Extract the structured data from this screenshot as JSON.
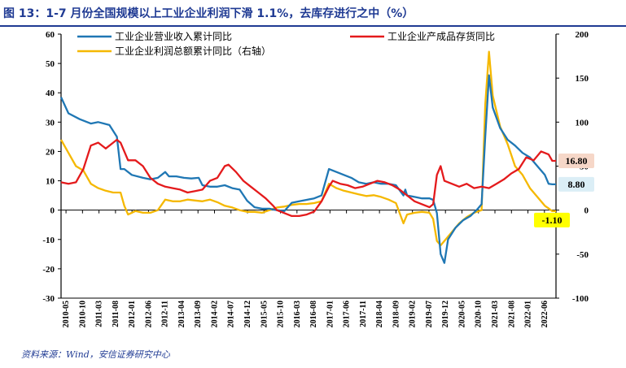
{
  "header": {
    "title": "图 13：1-7 月份全国规模以上工业企业利润下滑 1.1%，去库存进行之中（%）"
  },
  "footer": {
    "source": "资料来源：Wind，安信证券研究中心"
  },
  "colors": {
    "revenue": "#1f77b4",
    "inventory": "#e41a1c",
    "profit": "#f5b800",
    "title": "#1f3a93"
  },
  "chart_data": {
    "type": "line",
    "title": "1-7 月份全国规模以上工业企业利润下滑 1.1%，去库存进行之中（%）",
    "x_tick_labels": [
      "2010-05",
      "2010-10",
      "2011-03",
      "2011-08",
      "2012-01",
      "2012-06",
      "2012-11",
      "2013-04",
      "2013-09",
      "2014-02",
      "2014-07",
      "2014-12",
      "2015-05",
      "2015-10",
      "2016-03",
      "2016-08",
      "2017-01",
      "2017-06",
      "2017-11",
      "2018-04",
      "2018-09",
      "2019-02",
      "2019-07",
      "2019-12",
      "2020-05",
      "2020-10",
      "2021-03",
      "2021-08",
      "2022-01",
      "2022-06"
    ],
    "y_left": {
      "min": -30,
      "max": 60,
      "ticks": [
        "60",
        "50",
        "40",
        "30",
        "20",
        "10",
        "0",
        "-10",
        "-20",
        "-30"
      ]
    },
    "y_right": {
      "min": -100,
      "max": 200,
      "ticks": [
        "200",
        "150",
        "100",
        "50",
        "0",
        "-50",
        "-100"
      ]
    },
    "legend": [
      "工业企业营业收入累计同比",
      "工业企业产成品存货同比",
      "工业企业利润总额累计同比（右轴）"
    ],
    "annotations": [
      {
        "text": "16.80",
        "axis": "left",
        "value": 16.8,
        "color": "#f6d7c8"
      },
      {
        "text": "8.80",
        "axis": "left",
        "value": 8.8,
        "color": "#dbeef6"
      },
      {
        "text": "-1.10",
        "axis": "right",
        "value": -1.1,
        "color": "#ffff00"
      }
    ],
    "series": [
      {
        "name": "工业企业营业收入累计同比",
        "axis": "left",
        "points": [
          [
            0,
            38.5
          ],
          [
            2,
            33
          ],
          [
            5,
            31
          ],
          [
            8,
            29.5
          ],
          [
            10,
            30
          ],
          [
            13,
            29
          ],
          [
            15,
            25
          ],
          [
            16,
            14
          ],
          [
            17,
            14
          ],
          [
            19,
            12
          ],
          [
            22,
            11
          ],
          [
            24,
            10.5
          ],
          [
            26,
            11
          ],
          [
            28,
            13
          ],
          [
            29,
            11.5
          ],
          [
            31,
            11.5
          ],
          [
            33,
            11
          ],
          [
            35,
            10.8
          ],
          [
            37,
            11
          ],
          [
            38,
            8.5
          ],
          [
            40,
            8
          ],
          [
            42,
            8
          ],
          [
            44,
            8.5
          ],
          [
            46,
            7.5
          ],
          [
            48,
            7
          ],
          [
            50,
            3.2
          ],
          [
            52,
            1
          ],
          [
            54,
            0.5
          ],
          [
            56,
            0.5
          ],
          [
            58,
            0
          ],
          [
            60,
            -0.3
          ],
          [
            62,
            2.5
          ],
          [
            64,
            3
          ],
          [
            66,
            3.5
          ],
          [
            68,
            4
          ],
          [
            70,
            5
          ],
          [
            72,
            14
          ],
          [
            74,
            13
          ],
          [
            76,
            12
          ],
          [
            78,
            11
          ],
          [
            80,
            9.5
          ],
          [
            82,
            9
          ],
          [
            84,
            9.5
          ],
          [
            86,
            9
          ],
          [
            88,
            9
          ],
          [
            90,
            8.5
          ],
          [
            92,
            5
          ],
          [
            92.5,
            7
          ],
          [
            93,
            5
          ],
          [
            95,
            4.5
          ],
          [
            97,
            4
          ],
          [
            99,
            4
          ],
          [
            100,
            3.5
          ],
          [
            101,
            -1
          ],
          [
            102,
            -15
          ],
          [
            103,
            -18
          ],
          [
            104,
            -10
          ],
          [
            106,
            -6
          ],
          [
            108,
            -3.5
          ],
          [
            110,
            -2
          ],
          [
            112,
            0.5
          ],
          [
            113,
            2
          ],
          [
            114,
            25
          ],
          [
            115,
            46
          ],
          [
            116,
            35
          ],
          [
            118,
            28
          ],
          [
            120,
            24
          ],
          [
            122,
            22
          ],
          [
            124,
            19.5
          ],
          [
            126,
            18
          ],
          [
            128,
            15
          ],
          [
            130,
            12
          ],
          [
            131,
            9
          ],
          [
            132,
            8.8
          ],
          [
            133,
            8.8
          ]
        ]
      },
      {
        "name": "工业企业产成品存货同比",
        "axis": "left",
        "points": [
          [
            0,
            9.5
          ],
          [
            2,
            9
          ],
          [
            4,
            9.5
          ],
          [
            6,
            14
          ],
          [
            8,
            22
          ],
          [
            10,
            23
          ],
          [
            12,
            21
          ],
          [
            14,
            23
          ],
          [
            15,
            24
          ],
          [
            16,
            23
          ],
          [
            17,
            20
          ],
          [
            18,
            17
          ],
          [
            20,
            17
          ],
          [
            22,
            15
          ],
          [
            24,
            11
          ],
          [
            26,
            9
          ],
          [
            28,
            8
          ],
          [
            30,
            7.5
          ],
          [
            32,
            7
          ],
          [
            34,
            6
          ],
          [
            36,
            6.5
          ],
          [
            38,
            7
          ],
          [
            40,
            10
          ],
          [
            42,
            11
          ],
          [
            44,
            15
          ],
          [
            45,
            15.5
          ],
          [
            47,
            13
          ],
          [
            49,
            10
          ],
          [
            51,
            8
          ],
          [
            53,
            6
          ],
          [
            55,
            4
          ],
          [
            57,
            1.5
          ],
          [
            58,
            0
          ],
          [
            60,
            -1
          ],
          [
            62,
            -2
          ],
          [
            64,
            -2
          ],
          [
            66,
            -1.5
          ],
          [
            68,
            -0.5
          ],
          [
            70,
            3
          ],
          [
            72,
            8
          ],
          [
            73,
            10
          ],
          [
            75,
            9
          ],
          [
            77,
            8.5
          ],
          [
            79,
            7.5
          ],
          [
            81,
            8
          ],
          [
            83,
            9
          ],
          [
            85,
            10
          ],
          [
            87,
            9.5
          ],
          [
            89,
            8.5
          ],
          [
            91,
            7
          ],
          [
            93,
            5
          ],
          [
            95,
            3
          ],
          [
            97,
            2
          ],
          [
            99,
            1
          ],
          [
            100,
            2
          ],
          [
            101,
            12
          ],
          [
            102,
            15
          ],
          [
            103,
            10
          ],
          [
            105,
            9
          ],
          [
            107,
            8
          ],
          [
            109,
            9
          ],
          [
            111,
            7.5
          ],
          [
            113,
            8
          ],
          [
            115,
            7.5
          ],
          [
            117,
            9
          ],
          [
            119,
            10.5
          ],
          [
            121,
            12.5
          ],
          [
            123,
            14
          ],
          [
            125,
            18
          ],
          [
            127,
            17
          ],
          [
            129,
            20
          ],
          [
            131,
            19
          ],
          [
            132,
            16.8
          ],
          [
            133,
            16.8
          ]
        ]
      },
      {
        "name": "工业企业利润总额累计同比（右轴）",
        "axis": "right",
        "points": [
          [
            0,
            80
          ],
          [
            2,
            65
          ],
          [
            4,
            50
          ],
          [
            6,
            45
          ],
          [
            8,
            30
          ],
          [
            10,
            25
          ],
          [
            12,
            22
          ],
          [
            14,
            20
          ],
          [
            16,
            20
          ],
          [
            17,
            5
          ],
          [
            18,
            -5
          ],
          [
            20,
            -1
          ],
          [
            22,
            -3
          ],
          [
            24,
            -3
          ],
          [
            26,
            0
          ],
          [
            28,
            12
          ],
          [
            30,
            10
          ],
          [
            32,
            10
          ],
          [
            34,
            12
          ],
          [
            36,
            11
          ],
          [
            38,
            10
          ],
          [
            40,
            12
          ],
          [
            42,
            9
          ],
          [
            44,
            5
          ],
          [
            46,
            3
          ],
          [
            48,
            0
          ],
          [
            50,
            -2
          ],
          [
            52,
            -2
          ],
          [
            54,
            -3
          ],
          [
            56,
            0
          ],
          [
            58,
            3
          ],
          [
            60,
            4
          ],
          [
            62,
            6
          ],
          [
            64,
            7
          ],
          [
            66,
            7
          ],
          [
            68,
            8
          ],
          [
            70,
            10
          ],
          [
            72,
            30
          ],
          [
            74,
            25
          ],
          [
            76,
            22
          ],
          [
            78,
            20
          ],
          [
            80,
            18
          ],
          [
            82,
            16
          ],
          [
            84,
            17
          ],
          [
            86,
            15
          ],
          [
            88,
            12
          ],
          [
            90,
            8
          ],
          [
            92,
            -15
          ],
          [
            93,
            -5
          ],
          [
            95,
            -3
          ],
          [
            97,
            -2
          ],
          [
            99,
            -3
          ],
          [
            100,
            -10
          ],
          [
            101,
            -35
          ],
          [
            102,
            -40
          ],
          [
            103,
            -35
          ],
          [
            105,
            -25
          ],
          [
            107,
            -15
          ],
          [
            109,
            -8
          ],
          [
            111,
            -3
          ],
          [
            113,
            0
          ],
          [
            114,
            120
          ],
          [
            115,
            180
          ],
          [
            116,
            130
          ],
          [
            118,
            95
          ],
          [
            120,
            75
          ],
          [
            122,
            50
          ],
          [
            124,
            40
          ],
          [
            126,
            25
          ],
          [
            128,
            15
          ],
          [
            130,
            5
          ],
          [
            131,
            2
          ],
          [
            132,
            -1.1
          ],
          [
            133,
            -1.1
          ]
        ]
      }
    ]
  }
}
